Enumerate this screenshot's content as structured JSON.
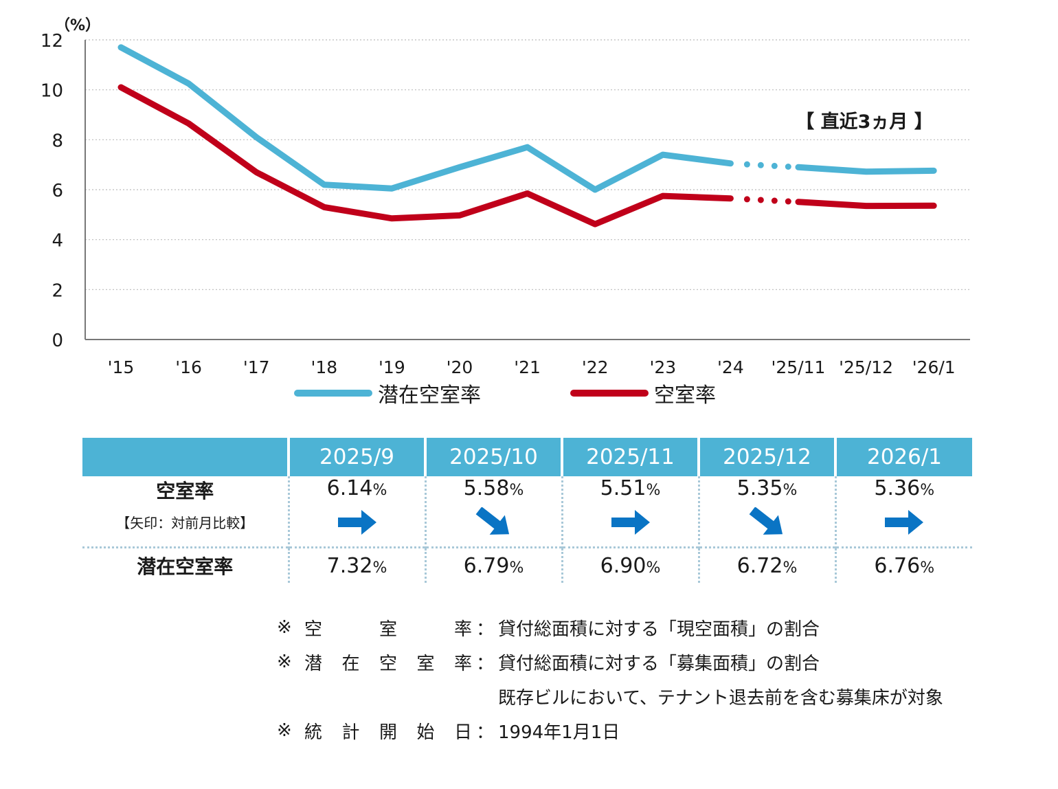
{
  "chart_data": {
    "type": "line",
    "unit_label": "（%）",
    "ylim": [
      0,
      12
    ],
    "yticks": [
      "0",
      "2",
      "4",
      "6",
      "8",
      "10",
      "12"
    ],
    "categories": [
      "'15",
      "'16",
      "'17",
      "'18",
      "'19",
      "'20",
      "'21",
      "'22",
      "'23",
      "'24",
      "'25/11",
      "'25/12",
      "'26/1"
    ],
    "annotation": "【 直近3ヵ月 】",
    "grid": "horizontal dotted",
    "legend_placement": "bottom",
    "series": [
      {
        "name": "潜在空室率",
        "color": "#4db3d5",
        "values": [
          11.7,
          10.25,
          8.1,
          6.2,
          6.05,
          6.9,
          7.7,
          6.0,
          7.4,
          7.05,
          6.9,
          6.72,
          6.76
        ]
      },
      {
        "name": "空室率",
        "color": "#c0001a",
        "values": [
          10.1,
          8.65,
          6.7,
          5.3,
          4.85,
          4.97,
          5.85,
          4.62,
          5.75,
          5.65,
          5.51,
          5.35,
          5.36
        ]
      }
    ]
  },
  "table": {
    "header": [
      "",
      "2025/9",
      "2025/10",
      "2025/11",
      "2025/12",
      "2026/1"
    ],
    "vacancy_label": "空室率",
    "vacancy_sublabel": "【矢印：対前月比較】",
    "potential_label": "潜在空室率",
    "pct_sign": "%",
    "vacancy_values": [
      "6.14",
      "5.58",
      "5.51",
      "5.35",
      "5.36"
    ],
    "arrows": [
      "flat",
      "down",
      "flat",
      "down",
      "flat"
    ],
    "potential_values": [
      "7.32",
      "6.79",
      "6.90",
      "6.72",
      "6.76"
    ],
    "arrow_color": "#0a74c4"
  },
  "notes": [
    {
      "prefix": "※",
      "term": [
        "空",
        "室",
        "率"
      ],
      "colon": "：",
      "desc": "貸付総面積に対する「現空面積」の割合"
    },
    {
      "prefix": "※",
      "term": [
        "潜",
        "在",
        "空",
        "室",
        "率"
      ],
      "colon": "：",
      "desc": "貸付総面積に対する「募集面積」の割合"
    },
    {
      "prefix": "",
      "term": [],
      "colon": "",
      "desc": "既存ビルにおいて、テナント退去前を含む募集床が対象"
    },
    {
      "prefix": "※",
      "term": [
        "統",
        "計",
        "開",
        "始",
        "日"
      ],
      "colon": "：",
      "desc": "1994年1月1日"
    }
  ]
}
